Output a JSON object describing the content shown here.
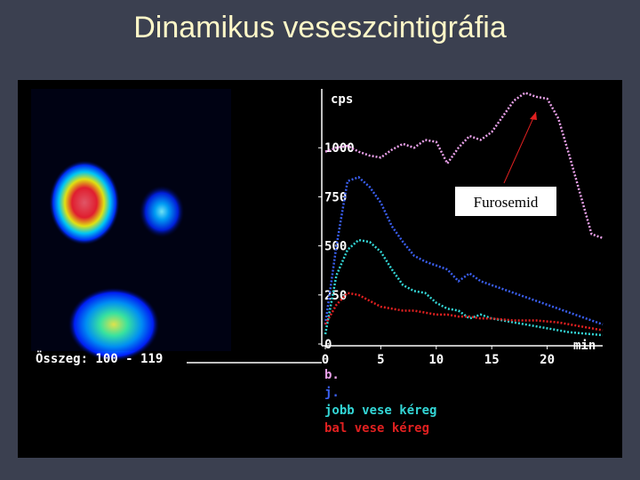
{
  "slide": {
    "title": "Dinamikus veseszcintigráfia"
  },
  "image": {
    "caption": "Összeg: 100 - 119"
  },
  "chart_data": {
    "type": "line",
    "y_label": "cps",
    "x_label": "min",
    "annotation": "Furosemid",
    "x": [
      0,
      1,
      2,
      3,
      4,
      5,
      6,
      7,
      8,
      9,
      10,
      11,
      12,
      13,
      14,
      15,
      16,
      17,
      18,
      19,
      20,
      21,
      22,
      23,
      24,
      25
    ],
    "xlim": [
      0,
      25
    ],
    "xticks": [
      0,
      5,
      10,
      15,
      20
    ],
    "ylim": [
      0,
      1300
    ],
    "yticks": [
      0,
      250,
      500,
      750,
      1000
    ],
    "series": [
      {
        "name": "b.",
        "color": "#e9a0e9",
        "values": [
          980,
          1000,
          1010,
          980,
          960,
          950,
          990,
          1020,
          1000,
          1040,
          1030,
          920,
          1000,
          1060,
          1040,
          1080,
          1160,
          1240,
          1280,
          1260,
          1250,
          1150,
          960,
          760,
          560,
          540
        ]
      },
      {
        "name": "j.",
        "color": "#3a5ff0",
        "values": [
          100,
          500,
          830,
          850,
          800,
          720,
          600,
          520,
          450,
          420,
          400,
          380,
          320,
          360,
          320,
          300,
          280,
          260,
          240,
          220,
          200,
          180,
          160,
          140,
          120,
          100
        ]
      },
      {
        "name": "jobb vese kéreg",
        "color": "#33d6d6",
        "values": [
          50,
          350,
          480,
          530,
          520,
          470,
          380,
          300,
          270,
          260,
          210,
          180,
          170,
          130,
          150,
          130,
          120,
          110,
          100,
          90,
          80,
          70,
          60,
          55,
          50,
          45
        ]
      },
      {
        "name": "bal vese kéreg",
        "color": "#e02020",
        "values": [
          100,
          200,
          260,
          250,
          220,
          190,
          180,
          170,
          170,
          160,
          150,
          150,
          140,
          140,
          130,
          130,
          125,
          120,
          120,
          120,
          115,
          110,
          100,
          90,
          80,
          70
        ]
      }
    ]
  }
}
